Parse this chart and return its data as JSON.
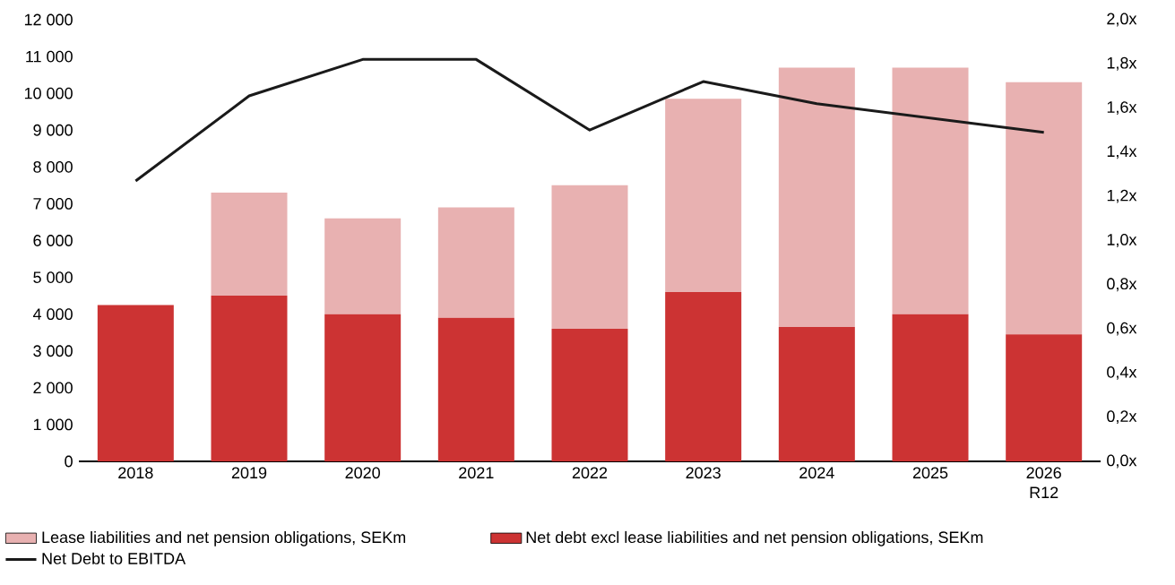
{
  "chart_data": {
    "type": "bar",
    "stacked": true,
    "legend": "bottom",
    "marker": "none",
    "categories": [
      "2018",
      "2019",
      "2020",
      "2021",
      "2022",
      "2023",
      "2024",
      "2025",
      "2026 R12"
    ],
    "series": [
      {
        "name": "Net debt excl lease liabilities and net pension obligations, SEKm",
        "color": "#cc3333",
        "values": [
          4250,
          4500,
          4000,
          3900,
          3600,
          4600,
          3650,
          4000,
          3450
        ]
      },
      {
        "name": "Lease liabilities and net pension obligations, SEKm",
        "color": "#e8b1b1",
        "values": [
          0,
          2800,
          2600,
          3000,
          3900,
          5250,
          7050,
          6700,
          6850
        ]
      },
      {
        "name": "Net Debt to EBITDA",
        "type": "line",
        "axis": "y2",
        "color": "#1a1a1a",
        "values": [
          1.27,
          1.655,
          1.82,
          1.82,
          1.5,
          1.72,
          1.62,
          1.555,
          1.49
        ]
      }
    ],
    "ylim": [
      0,
      12000
    ],
    "yticks": [
      0,
      {
        "value": 1000,
        "label": "1 000"
      },
      {
        "value": 2000,
        "label": "2 000"
      },
      {
        "value": 3000,
        "label": "3 000"
      },
      {
        "value": 4000,
        "label": "4 000"
      },
      {
        "value": 5000,
        "label": "5 000"
      },
      {
        "value": 6000,
        "label": "6 000"
      },
      {
        "value": 7000,
        "label": "7 000"
      },
      {
        "value": 8000,
        "label": "8 000"
      },
      {
        "value": 9000,
        "label": "9 000"
      },
      {
        "value": 10000,
        "label": "10 000"
      },
      {
        "value": 11000,
        "label": "11 000"
      },
      {
        "value": 12000,
        "label": "12 000"
      }
    ],
    "y2lim": [
      0,
      2.0
    ],
    "y2ticks": [
      {
        "value": 0,
        "label": "0,0x"
      },
      {
        "value": 0.2,
        "label": "0,2x"
      },
      {
        "value": 0.4,
        "label": "0,4x"
      },
      {
        "value": 0.6,
        "label": "0,6x"
      },
      {
        "value": 0.8,
        "label": "0,8x"
      },
      {
        "value": 1.0,
        "label": "1,0x"
      },
      {
        "value": 1.2,
        "label": "1,2x"
      },
      {
        "value": 1.4,
        "label": "1,4x"
      },
      {
        "value": 1.6,
        "label": "1,6x"
      },
      {
        "value": 1.8,
        "label": "1,8x"
      },
      {
        "value": 2.0,
        "label": "2,0x"
      }
    ]
  }
}
